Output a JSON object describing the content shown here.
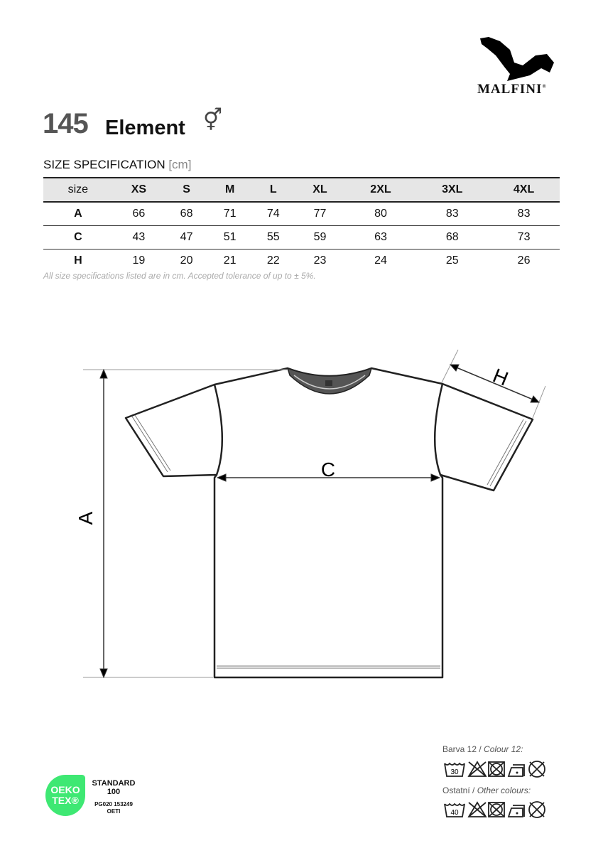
{
  "brand": {
    "name": "MALFINI",
    "registered": "®"
  },
  "product": {
    "code": "145",
    "name": "Element",
    "gender_symbol": "⚥"
  },
  "spec": {
    "title": "SIZE SPECIFICATION",
    "unit": "[cm]",
    "headers": [
      "size",
      "XS",
      "S",
      "M",
      "L",
      "XL",
      "2XL",
      "3XL",
      "4XL"
    ],
    "rows": [
      [
        "A",
        "66",
        "68",
        "71",
        "74",
        "77",
        "80",
        "83",
        "83"
      ],
      [
        "C",
        "43",
        "47",
        "51",
        "55",
        "59",
        "63",
        "68",
        "73"
      ],
      [
        "H",
        "19",
        "20",
        "21",
        "22",
        "23",
        "24",
        "25",
        "26"
      ]
    ],
    "note": "All size specifications listed are in cm. Accepted tolerance of up to ± 5%."
  },
  "diagram": {
    "label_a": "A",
    "label_c": "C",
    "label_h": "H"
  },
  "care": {
    "colour12_label_cz": "Barva 12 /",
    "colour12_label_en": "Colour 12:",
    "colour12_wash": "30",
    "other_label_cz": "Ostatní /",
    "other_label_en": "Other colours:",
    "other_wash": "40",
    "icons": [
      "wash-icon",
      "no-bleach-icon",
      "no-tumble-dry-icon",
      "iron-low-icon",
      "no-dry-clean-icon"
    ]
  },
  "oekotex": {
    "line1": "OEKO",
    "line2": "TEX®",
    "standard": "STANDARD",
    "number": "100",
    "cert": "PG020 153249",
    "institute": "OETI",
    "color": "#3ee873"
  }
}
